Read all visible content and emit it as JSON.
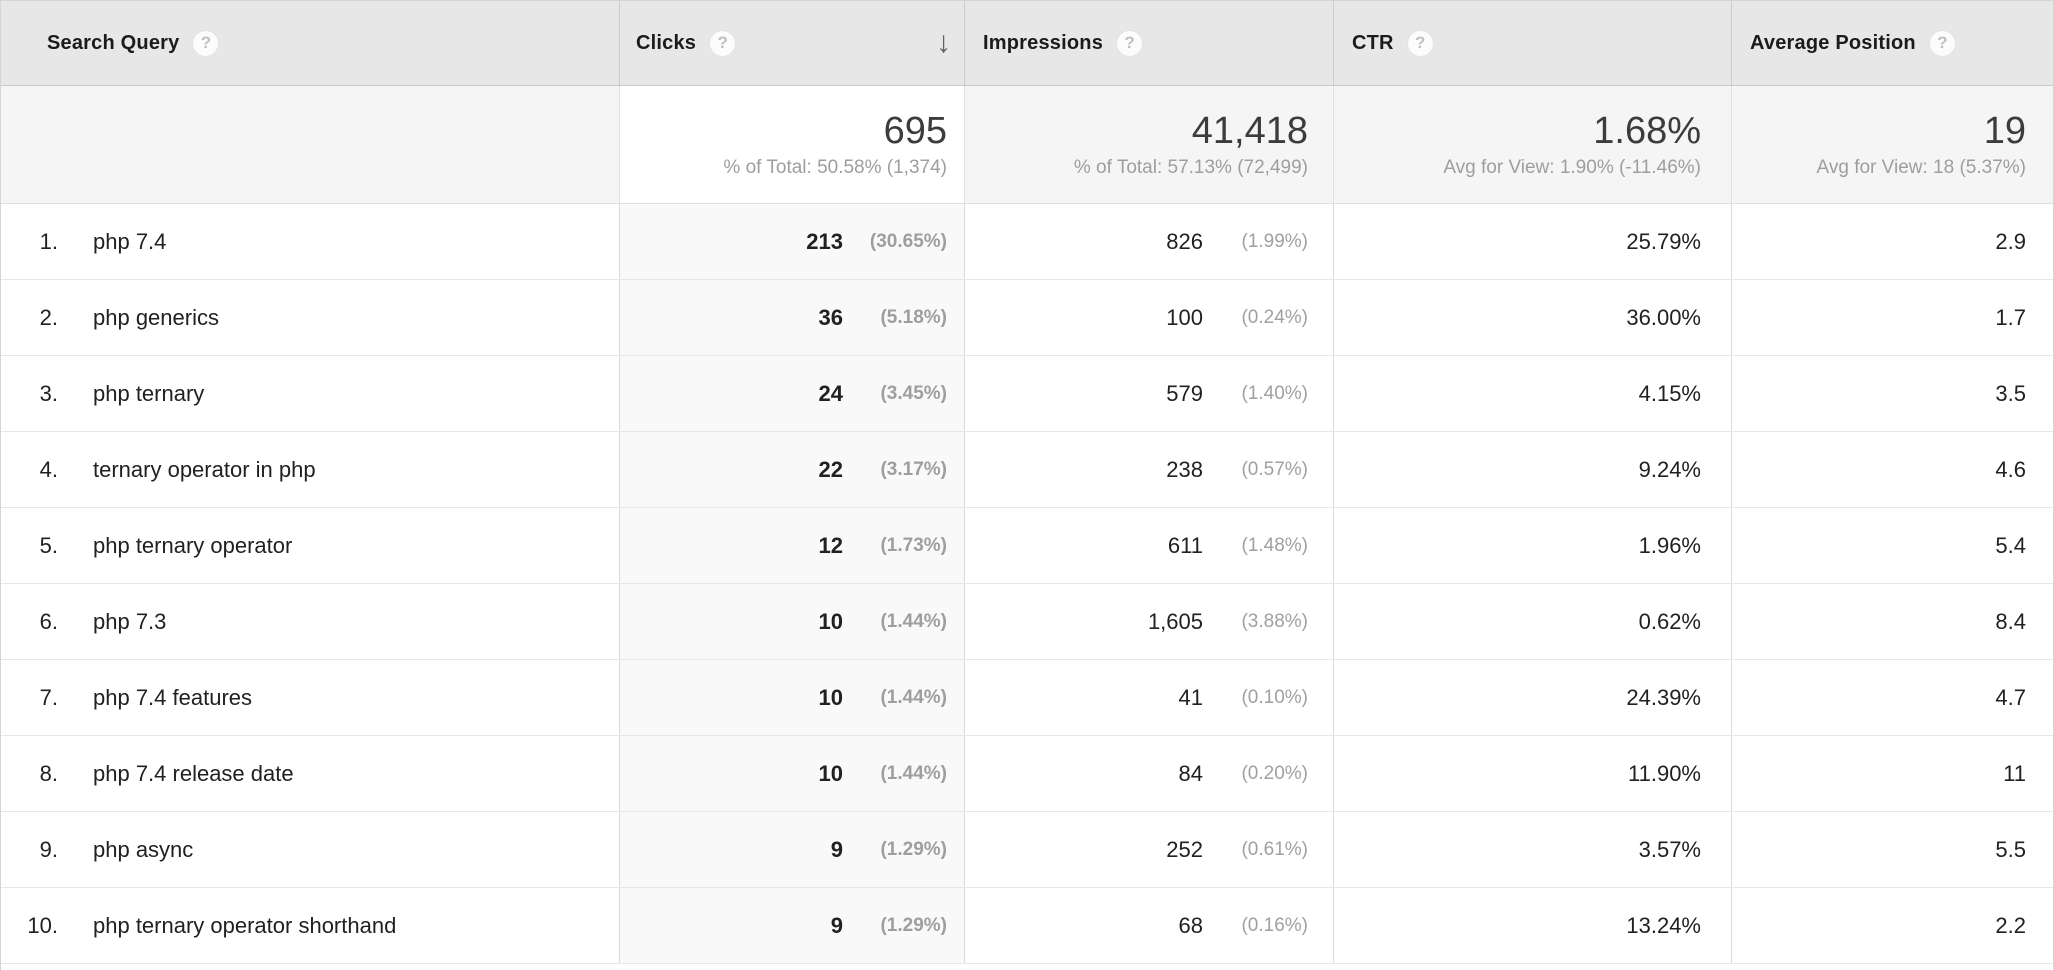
{
  "icons": {
    "help": "?",
    "sort_descending": "↓"
  },
  "colors": {
    "header_bg": "#e7e7e7",
    "summary_bg": "#f5f5f5",
    "sorted_column_highlight": "#f9f9f9",
    "primary_text": "#212121",
    "muted_text": "#9e9e9e"
  },
  "table": {
    "columns": [
      {
        "label": "Search Query"
      },
      {
        "label": "Clicks",
        "sorted": "descending"
      },
      {
        "label": "Impressions"
      },
      {
        "label": "CTR"
      },
      {
        "label": "Average Position"
      }
    ],
    "totals": {
      "clicks": {
        "value": "695",
        "subtitle": "% of Total: 50.58% (1,374)"
      },
      "impressions": {
        "value": "41,418",
        "subtitle": "% of Total: 57.13% (72,499)"
      },
      "ctr": {
        "value": "1.68%",
        "subtitle": "Avg for View: 1.90% (-11.46%)"
      },
      "avg_position": {
        "value": "19",
        "subtitle": "Avg for View: 18 (5.37%)"
      }
    },
    "rows": [
      {
        "index": "1.",
        "query": "php 7.4",
        "clicks": "213",
        "clicks_pct": "(30.65%)",
        "impressions": "826",
        "impressions_pct": "(1.99%)",
        "ctr": "25.79%",
        "avg_position": "2.9"
      },
      {
        "index": "2.",
        "query": "php generics",
        "clicks": "36",
        "clicks_pct": "(5.18%)",
        "impressions": "100",
        "impressions_pct": "(0.24%)",
        "ctr": "36.00%",
        "avg_position": "1.7"
      },
      {
        "index": "3.",
        "query": "php ternary",
        "clicks": "24",
        "clicks_pct": "(3.45%)",
        "impressions": "579",
        "impressions_pct": "(1.40%)",
        "ctr": "4.15%",
        "avg_position": "3.5"
      },
      {
        "index": "4.",
        "query": "ternary operator in php",
        "clicks": "22",
        "clicks_pct": "(3.17%)",
        "impressions": "238",
        "impressions_pct": "(0.57%)",
        "ctr": "9.24%",
        "avg_position": "4.6"
      },
      {
        "index": "5.",
        "query": "php ternary operator",
        "clicks": "12",
        "clicks_pct": "(1.73%)",
        "impressions": "611",
        "impressions_pct": "(1.48%)",
        "ctr": "1.96%",
        "avg_position": "5.4"
      },
      {
        "index": "6.",
        "query": "php 7.3",
        "clicks": "10",
        "clicks_pct": "(1.44%)",
        "impressions": "1,605",
        "impressions_pct": "(3.88%)",
        "ctr": "0.62%",
        "avg_position": "8.4"
      },
      {
        "index": "7.",
        "query": "php 7.4 features",
        "clicks": "10",
        "clicks_pct": "(1.44%)",
        "impressions": "41",
        "impressions_pct": "(0.10%)",
        "ctr": "24.39%",
        "avg_position": "4.7"
      },
      {
        "index": "8.",
        "query": "php 7.4 release date",
        "clicks": "10",
        "clicks_pct": "(1.44%)",
        "impressions": "84",
        "impressions_pct": "(0.20%)",
        "ctr": "11.90%",
        "avg_position": "11"
      },
      {
        "index": "9.",
        "query": "php async",
        "clicks": "9",
        "clicks_pct": "(1.29%)",
        "impressions": "252",
        "impressions_pct": "(0.61%)",
        "ctr": "3.57%",
        "avg_position": "5.5"
      },
      {
        "index": "10.",
        "query": "php ternary operator shorthand",
        "clicks": "9",
        "clicks_pct": "(1.29%)",
        "impressions": "68",
        "impressions_pct": "(0.16%)",
        "ctr": "13.24%",
        "avg_position": "2.2"
      }
    ]
  }
}
